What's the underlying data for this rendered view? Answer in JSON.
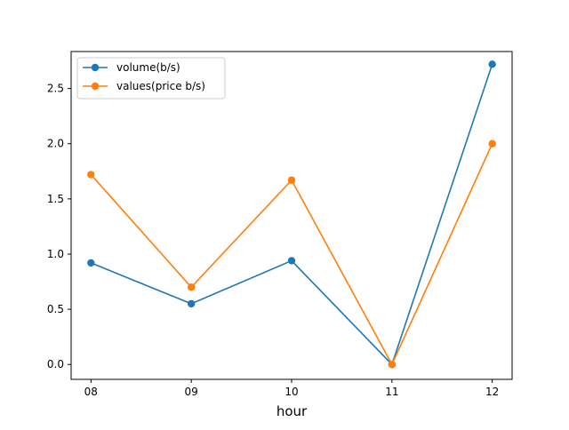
{
  "chart_data": {
    "type": "line",
    "title": "",
    "xlabel": "hour",
    "ylabel": "",
    "categories": [
      "08",
      "09",
      "10",
      "11",
      "12"
    ],
    "ylim": [
      -0.135,
      2.835
    ],
    "yticks": [
      0.0,
      0.5,
      1.0,
      1.5,
      2.0,
      2.5
    ],
    "ytick_labels": [
      "0.0",
      "0.5",
      "1.0",
      "1.5",
      "2.0",
      "2.5"
    ],
    "grid": false,
    "legend_position": "upper-left",
    "series": [
      {
        "name": "volume(b/s)",
        "color": "#1f77b4",
        "marker": "circle",
        "values": [
          0.92,
          0.55,
          0.94,
          0.0,
          2.72
        ]
      },
      {
        "name": "values(price b/s)",
        "color": "#ff7f0e",
        "marker": "circle",
        "values": [
          1.72,
          0.7,
          1.67,
          0.0,
          2.0
        ]
      }
    ]
  }
}
